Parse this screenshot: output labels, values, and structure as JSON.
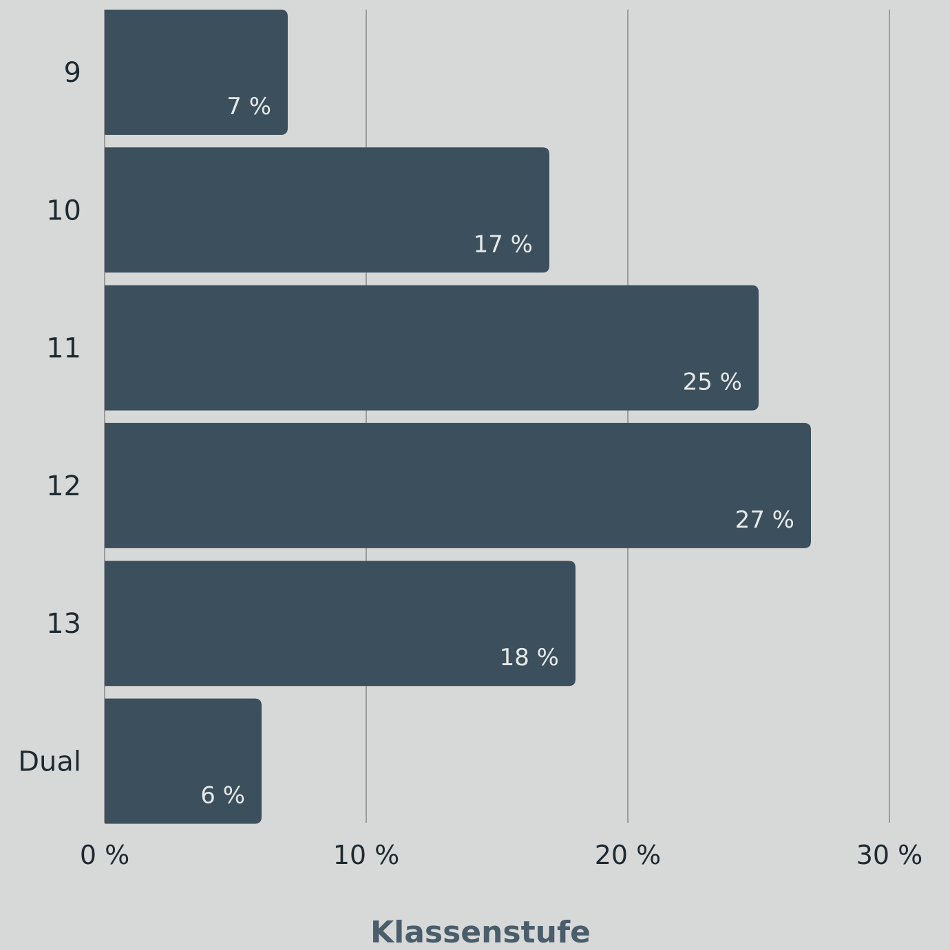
{
  "chart_data": {
    "type": "bar",
    "orientation": "horizontal",
    "categories": [
      "9",
      "10",
      "11",
      "12",
      "13",
      "Dual"
    ],
    "values": [
      7,
      17,
      25,
      27,
      18,
      6
    ],
    "value_labels": [
      "7 %",
      "17 %",
      "25 %",
      "27 %",
      "18 %",
      "6 %"
    ],
    "xlim": [
      0,
      30
    ],
    "x_ticks": [
      0,
      10,
      20,
      30
    ],
    "x_tick_labels": [
      "0 %",
      "10 %",
      "20 %",
      "30 %"
    ],
    "xlabel": "",
    "ylabel": "Klassenstufe",
    "grid": "vertical",
    "colors": {
      "background": "#d7d9d8",
      "bar": "#3b4f5d",
      "bar_label": "#e6e8e7",
      "gridline": "#9a9c9b",
      "text": "#1f2a30",
      "axis_title": "#4a5d6b"
    }
  }
}
